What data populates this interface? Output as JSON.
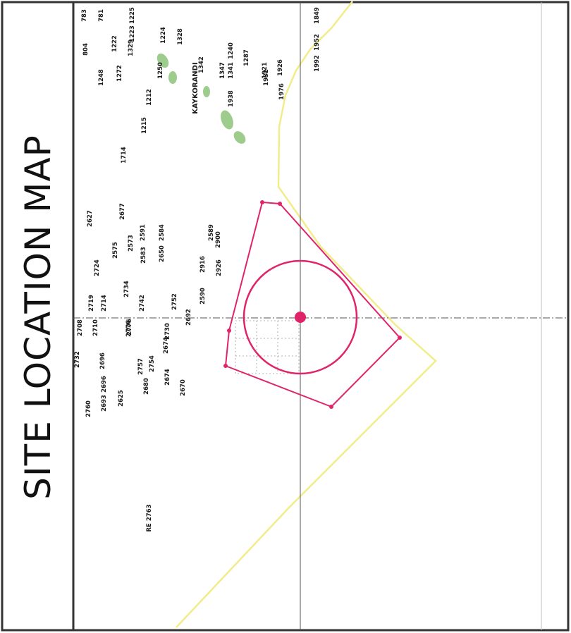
{
  "map": {
    "title": "SITE LOCATION MAP",
    "locality": "KAYKORANDI",
    "reference": "RE 2763",
    "colors": {
      "site": "#e0246a",
      "boundary": "#f2ec8a",
      "frame": "#333333",
      "lines": "#555555",
      "vegetation": "#8cc47a"
    },
    "plot_numbers": [
      "783",
      "781",
      "804",
      "1225",
      "1223",
      "1222",
      "1329",
      "1248",
      "1272",
      "1224",
      "1328",
      "1250",
      "1240",
      "1212",
      "1347",
      "1342",
      "1341",
      "1287",
      "1938",
      "1921",
      "1215",
      "1926",
      "1932",
      "1976",
      "1952",
      "1849",
      "1714",
      "1992",
      "2627",
      "2677",
      "2575",
      "2591",
      "2573",
      "2583",
      "2584",
      "2724",
      "2719",
      "2714",
      "2589",
      "2734",
      "2710",
      "2742",
      "2708",
      "2776",
      "2650",
      "2590",
      "2916",
      "2926",
      "2900",
      "2732",
      "2757",
      "2754",
      "2692",
      "2730",
      "2696",
      "2760",
      "2696",
      "2674",
      "2693",
      "2625",
      "2680",
      "2674",
      "2776",
      "2670",
      "2752"
    ]
  }
}
